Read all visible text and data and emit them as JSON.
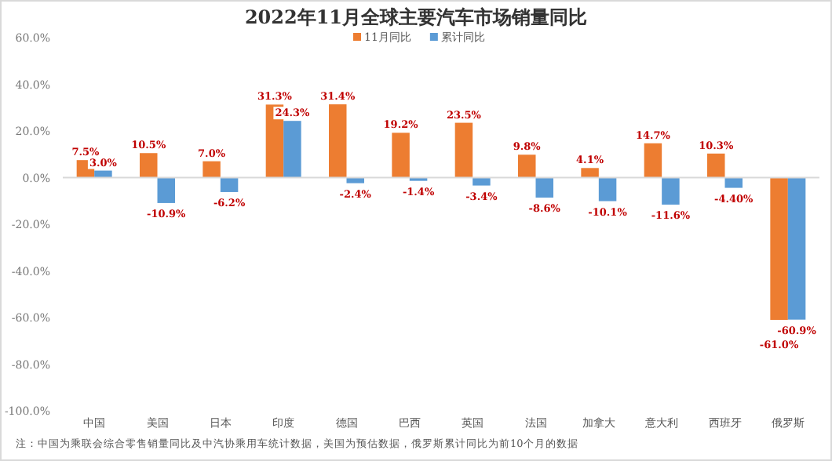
{
  "chart_data": {
    "type": "bar",
    "title": "2022年11月全球主要汽车市场销量同比",
    "categories": [
      "中国",
      "美国",
      "日本",
      "印度",
      "德国",
      "巴西",
      "英国",
      "法国",
      "加拿大",
      "意大利",
      "西班牙",
      "俄罗斯"
    ],
    "series": [
      {
        "name": "11月同比",
        "color": "#ed7d31",
        "values": [
          7.5,
          10.5,
          7.0,
          31.3,
          31.4,
          19.2,
          23.5,
          9.8,
          4.1,
          14.7,
          10.3,
          -61.0
        ],
        "value_labels": [
          "7.5%",
          "10.5%",
          "7.0%",
          "31.3%",
          "31.4%",
          "19.2%",
          "23.5%",
          "9.8%",
          "4.1%",
          "14.7%",
          "10.3%",
          "-61.0%"
        ]
      },
      {
        "name": "累计同比",
        "color": "#5b9bd5",
        "values": [
          3.0,
          -10.9,
          -6.2,
          24.3,
          -2.4,
          -1.4,
          -3.4,
          -8.6,
          -10.1,
          -11.6,
          -4.4,
          -60.9
        ],
        "value_labels": [
          "3.0%",
          "-10.9%",
          "-6.2%",
          "24.3%",
          "-2.4%",
          "-1.4%",
          "-3.4%",
          "-8.6%",
          "-10.1%",
          "-11.6%",
          "-4.40%",
          "-60.9%"
        ]
      }
    ],
    "ylim": [
      -100,
      60
    ],
    "yticks": [
      {
        "value": -100,
        "label": "-100.0%"
      },
      {
        "value": -80,
        "label": "-80.0%"
      },
      {
        "value": -60,
        "label": "-60.0%"
      },
      {
        "value": -40,
        "label": "-40.0%"
      },
      {
        "value": -20,
        "label": "-20.0%"
      },
      {
        "value": 0,
        "label": "0.0%"
      },
      {
        "value": 20,
        "label": "20.0%"
      },
      {
        "value": 40,
        "label": "40.0%"
      },
      {
        "value": 60,
        "label": "60.0%"
      }
    ],
    "legend": "top",
    "annotations": [
      "注：中国为乘联会综合零售销量同比及中汽协乘用车统计数据，美国为预估数据，俄罗斯累计同比为前10个月的数据"
    ]
  }
}
